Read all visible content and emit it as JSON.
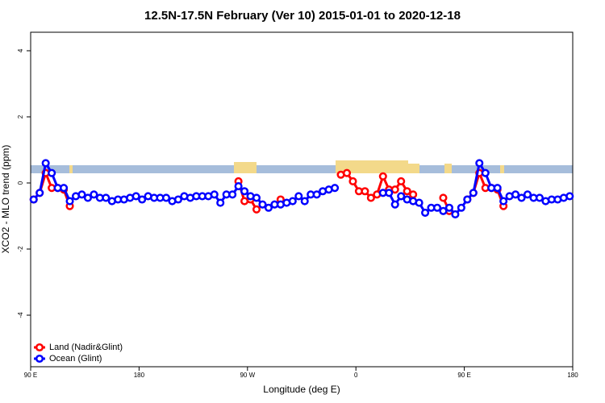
{
  "chart_data": {
    "type": "line",
    "title": "12.5N-17.5N February (Ver 10)   2015-01-01 to 2020-12-18",
    "x_label": "Longitude (deg E)",
    "y_label": "XCO2 - MLO trend (ppm)",
    "xlim": [
      90,
      540
    ],
    "ylim": [
      -5.56,
      4.56
    ],
    "xticks": [
      {
        "value": 90,
        "label": "90 E"
      },
      180,
      {
        "value": 270,
        "label": "90 W"
      },
      {
        "value": 360,
        "label": "0"
      },
      {
        "value": 450,
        "label": "90 E"
      },
      {
        "value": 540,
        "label": "180"
      }
    ],
    "yticks": [
      -4,
      -2,
      0,
      2,
      4
    ],
    "legend": "bottom-left",
    "x": [
      92.5,
      97.5,
      102.5,
      107.5,
      112.5,
      117.5,
      122.5,
      127.5,
      132.5,
      137.5,
      142.5,
      147.5,
      152.5,
      157.5,
      162.5,
      167.5,
      172.5,
      177.5,
      182.5,
      187.5,
      192.5,
      197.5,
      202.5,
      207.5,
      212.5,
      217.5,
      222.5,
      227.5,
      232.5,
      237.5,
      242.5,
      247.5,
      252.5,
      257.5,
      262.5,
      267.5,
      272.5,
      277.5,
      282.5,
      287.5,
      292.5,
      297.5,
      302.5,
      307.5,
      312.5,
      317.5,
      322.5,
      327.5,
      332.5,
      337.5,
      342.5,
      347.5,
      352.5,
      357.5,
      362.5,
      367.5,
      372.5,
      377.5,
      382.5,
      387.5,
      392.5,
      397.5,
      402.5,
      407.5,
      412.5,
      417.5,
      422.5,
      427.5,
      432.5,
      437.5,
      442.5,
      447.5,
      452.5,
      457.5,
      462.5,
      467.5,
      472.5,
      477.5,
      482.5,
      487.5,
      492.5,
      497.5,
      502.5,
      507.5,
      512.5,
      517.5,
      522.5,
      527.5,
      532.5,
      537.5
    ],
    "series": [
      {
        "name": "Land (Nadir&Glint)",
        "color": "#ff0000",
        "values": [
          -0.5,
          -0.3,
          0.3,
          -0.15,
          -0.15,
          -0.2,
          -0.7,
          null,
          null,
          null,
          null,
          null,
          null,
          null,
          null,
          null,
          null,
          null,
          null,
          null,
          null,
          null,
          null,
          null,
          null,
          null,
          null,
          null,
          null,
          null,
          null,
          null,
          null,
          null,
          0.05,
          -0.55,
          -0.5,
          -0.8,
          null,
          null,
          null,
          -0.5,
          null,
          null,
          null,
          null,
          null,
          null,
          null,
          null,
          null,
          0.25,
          0.3,
          0.05,
          -0.25,
          -0.25,
          -0.45,
          -0.35,
          0.2,
          -0.2,
          -0.2,
          0.05,
          -0.25,
          -0.35,
          null,
          null,
          null,
          null,
          -0.45,
          -0.85,
          null,
          null,
          -0.5,
          -0.3,
          0.3,
          -0.15,
          -0.15,
          -0.2,
          -0.7,
          null,
          null,
          null,
          null,
          null,
          null,
          null,
          null,
          null,
          null,
          null
        ]
      },
      {
        "name": "Ocean (Glint)",
        "color": "#0000ff",
        "values": [
          -0.5,
          -0.3,
          0.6,
          0.3,
          -0.15,
          -0.15,
          -0.55,
          -0.4,
          -0.35,
          -0.45,
          -0.35,
          -0.45,
          -0.45,
          -0.55,
          -0.5,
          -0.5,
          -0.45,
          -0.4,
          -0.5,
          -0.4,
          -0.45,
          -0.45,
          -0.45,
          -0.55,
          -0.5,
          -0.4,
          -0.45,
          -0.4,
          -0.4,
          -0.4,
          -0.35,
          -0.6,
          -0.35,
          -0.35,
          -0.1,
          -0.25,
          -0.4,
          -0.45,
          -0.65,
          -0.75,
          -0.65,
          -0.65,
          -0.6,
          -0.55,
          -0.4,
          -0.55,
          -0.35,
          -0.35,
          -0.25,
          -0.2,
          -0.15,
          null,
          null,
          null,
          null,
          null,
          null,
          null,
          -0.3,
          -0.3,
          -0.65,
          -0.4,
          -0.5,
          -0.55,
          -0.6,
          -0.9,
          -0.75,
          -0.75,
          -0.85,
          -0.75,
          -0.95,
          -0.75,
          -0.5,
          -0.3,
          0.6,
          0.3,
          -0.15,
          -0.15,
          -0.55,
          -0.4,
          -0.35,
          -0.45,
          -0.35,
          -0.45,
          -0.45,
          -0.55,
          -0.5,
          -0.5,
          -0.45,
          -0.4
        ]
      }
    ]
  }
}
